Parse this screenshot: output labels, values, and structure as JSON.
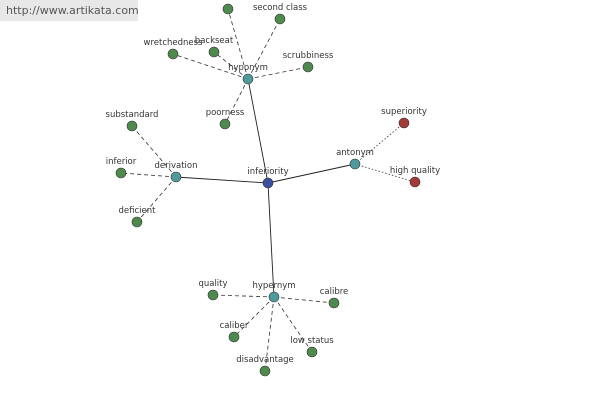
{
  "header": {
    "url": "http://www.artikata.com"
  },
  "graph": {
    "root": "inferiority",
    "relations": [
      {
        "label": "hyponym",
        "words": [
          "second class",
          "backseat",
          "wretchedness",
          "scrubbiness",
          "poorness"
        ]
      },
      {
        "label": "antonym",
        "words": [
          "superiority",
          "high quality"
        ]
      },
      {
        "label": "derivation",
        "words": [
          "substandard",
          "inferior",
          "deficient"
        ]
      },
      {
        "label": "hypernym",
        "words": [
          "quality",
          "calibre",
          "caliber",
          "low status",
          "disadvantage"
        ]
      }
    ]
  }
}
